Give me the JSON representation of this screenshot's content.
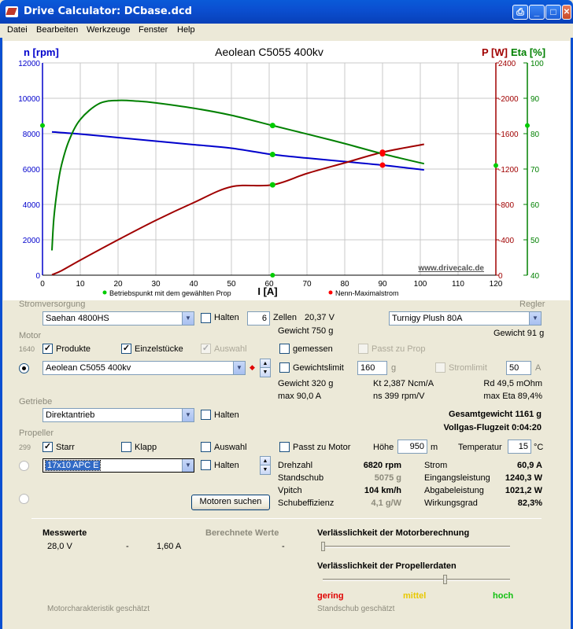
{
  "window": {
    "title": "Drive Calculator: DCbase.dcd",
    "buttons": [
      "⎙",
      "_",
      "□",
      "✕"
    ]
  },
  "menu": [
    "Datei",
    "Bearbeiten",
    "Werkzeuge",
    "Fenster",
    "Help"
  ],
  "chart": {
    "title": "Aeolean C5055 400kv",
    "ylabel_left": "n [rpm]",
    "ylabel_p": "P [W]",
    "ylabel_eta": "Eta [%]",
    "xlabel": "I [A]",
    "watermark": "www.drivecalc.de",
    "legend_op": "Betriebspunkt mit dem gewählten Prop",
    "legend_max": "Nenn-Maximalstrom",
    "x_ticks": [
      "0",
      "10",
      "20",
      "30",
      "40",
      "50",
      "60",
      "70",
      "80",
      "90",
      "100",
      "110",
      "120"
    ],
    "rpm_ticks": [
      "0",
      "2000",
      "4000",
      "6000",
      "8000",
      "10000",
      "12000"
    ],
    "p_ticks": [
      "0",
      "400",
      "800",
      "1200",
      "1600",
      "2000",
      "2400"
    ],
    "eta_ticks": [
      "40",
      "50",
      "60",
      "70",
      "80",
      "90",
      "100"
    ]
  },
  "chart_data": {
    "type": "line",
    "title": "Aeolean C5055 400kv",
    "xlabel": "I [A]",
    "ylabel": "n [rpm]",
    "xlim": [
      0,
      120
    ],
    "ylim": [
      0,
      12000
    ],
    "ylim_power": [
      0,
      2400
    ],
    "ylim_eta": [
      40,
      100
    ],
    "grid": true,
    "colors": {
      "rpm": "#0000cc",
      "power": "#a00000",
      "eta": "#008000",
      "point": "#00cc00",
      "max": "#ff0000"
    },
    "series": [
      {
        "name": "n [rpm]",
        "axis": "rpm",
        "x": [
          2.5,
          10,
          20,
          30,
          40,
          50,
          60.9,
          70,
          80,
          90,
          101
        ],
        "y": [
          8100,
          7980,
          7780,
          7580,
          7380,
          7180,
          6820,
          6620,
          6420,
          6220,
          5950
        ]
      },
      {
        "name": "P [W]",
        "axis": "power",
        "x": [
          2.5,
          5,
          10,
          20,
          30,
          40,
          50,
          60.9,
          70,
          80,
          90,
          101
        ],
        "y": [
          5,
          50,
          170,
          400,
          620,
          820,
          1000,
          1021,
          1150,
          1270,
          1390,
          1480
        ]
      },
      {
        "name": "Eta [%]",
        "axis": "eta",
        "x": [
          2.5,
          3,
          4,
          5,
          7,
          10,
          15,
          20,
          25,
          30,
          40,
          50,
          60.9,
          70,
          80,
          90,
          101
        ],
        "y": [
          47,
          56,
          65,
          71,
          78,
          84,
          88.5,
          89.4,
          89.2,
          88.7,
          87.2,
          85.2,
          82.3,
          79.9,
          77.2,
          74.3,
          71.5
        ]
      }
    ],
    "markers": {
      "operating_current": 60.9,
      "max_current": 90.0
    }
  },
  "stromversorgung": {
    "label": "Stromversorgung",
    "value": "Saehan 4800HS",
    "halten": "Halten",
    "zellen_count": "6",
    "zellen_label": "Zellen",
    "voltage": "20,37 V",
    "gewicht": "Gewicht 750 g"
  },
  "regler": {
    "label": "Regler",
    "value": "Turnigy Plush 80A",
    "gewicht": "Gewicht 91 g"
  },
  "motor": {
    "label": "Motor",
    "count": "1640",
    "produkte": "Produkte",
    "einzelstuecke": "Einzelstücke",
    "auswahl": "Auswahl",
    "gemessen": "gemessen",
    "passt_zu_prop": "Passt zu Prop",
    "value": "Aeolean C5055 400kv",
    "gewichtslimit": "Gewichtslimit",
    "gewichtslimit_value": "160",
    "gewichtslimit_unit": "g",
    "stromlimit": "Stromlimit",
    "stromlimit_value": "50",
    "stromlimit_unit": "A",
    "gewicht": "Gewicht 320 g",
    "kt": "Kt 2,387 Ncm/A",
    "rd": "Rd 49,5 mOhm",
    "max_strom": "max 90,0 A",
    "ns": "ns 399 rpm/V",
    "max_eta": "max Eta 89,4%"
  },
  "getriebe": {
    "label": "Getriebe",
    "value": "Direktantrieb",
    "halten": "Halten"
  },
  "totals": {
    "gesamtgewicht": "Gesamtgewicht 1161 g",
    "flugzeit": "Vollgas-Flugzeit 0:04:20"
  },
  "propeller": {
    "label": "Propeller",
    "count": "299",
    "starr": "Starr",
    "klapp": "Klapp",
    "auswahl": "Auswahl",
    "passt_zu_motor": "Passt zu Motor",
    "hoehe_label": "Höhe",
    "hoehe_value": "950",
    "hoehe_unit": "m",
    "temp_label": "Temperatur",
    "temp_value": "15",
    "temp_unit": "°C",
    "value": "17x10 APC E",
    "halten": "Halten",
    "motoren_suchen": "Motoren suchen"
  },
  "results": {
    "drehzahl_label": "Drehzahl",
    "drehzahl": "6820 rpm",
    "standschub_label": "Standschub",
    "standschub": "5075 g",
    "vpitch_label": "Vpitch",
    "vpitch": "104 km/h",
    "schubeff_label": "Schubeffizienz",
    "schubeff": "4,1 g/W",
    "strom_label": "Strom",
    "strom": "60,9 A",
    "eingang_label": "Eingangsleistung",
    "eingang": "1240,3 W",
    "abgabe_label": "Abgabeleistung",
    "abgabe": "1021,2 W",
    "wirkung_label": "Wirkungsgrad",
    "wirkung": "82,3%"
  },
  "bottom": {
    "messwerte": "Messwerte",
    "berechnete": "Berechnete Werte",
    "m_voltage": "28,0 V",
    "m_dash1": "-",
    "m_current": "1,60 A",
    "m_dash2": "-",
    "motor_geschaetzt": "Motorcharakteristik geschätzt",
    "verl_motor": "Verlässlichkeit der Motorberechnung",
    "verl_prop": "Verlässlichkeit der Propellerdaten",
    "gering": "gering",
    "mittel": "mittel",
    "hoch": "hoch",
    "standschub_geschaetzt": "Standschub geschätzt",
    "motor_reliability_level": 0.0,
    "prop_reliability_level": 0.65
  }
}
